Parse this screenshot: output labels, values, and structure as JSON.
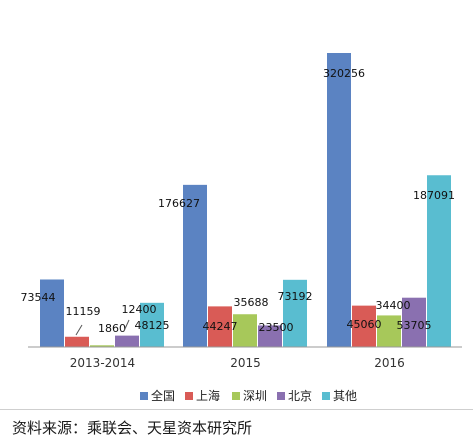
{
  "chart_data": {
    "type": "bar",
    "categories": [
      "2013-2014",
      "2015",
      "2016"
    ],
    "series": [
      {
        "name": "全国",
        "color": "#5b83c2",
        "values": [
          73544,
          176627,
          320256
        ]
      },
      {
        "name": "上海",
        "color": "#d95b56",
        "values": [
          11159,
          44247,
          45060
        ]
      },
      {
        "name": "深圳",
        "color": "#a7c85a",
        "values": [
          1860,
          35688,
          34400
        ]
      },
      {
        "name": "北京",
        "color": "#8a70b0",
        "values": [
          12400,
          23500,
          53705
        ]
      },
      {
        "name": "其他",
        "color": "#59bdd0",
        "values": [
          48125,
          73192,
          187091
        ]
      }
    ],
    "ylim": [
      0,
      320256
    ],
    "grid": false,
    "legend": "bottom",
    "title": "",
    "xlabel": "",
    "ylabel": ""
  },
  "source_text": "资料来源：乘联会、天星资本研究所"
}
